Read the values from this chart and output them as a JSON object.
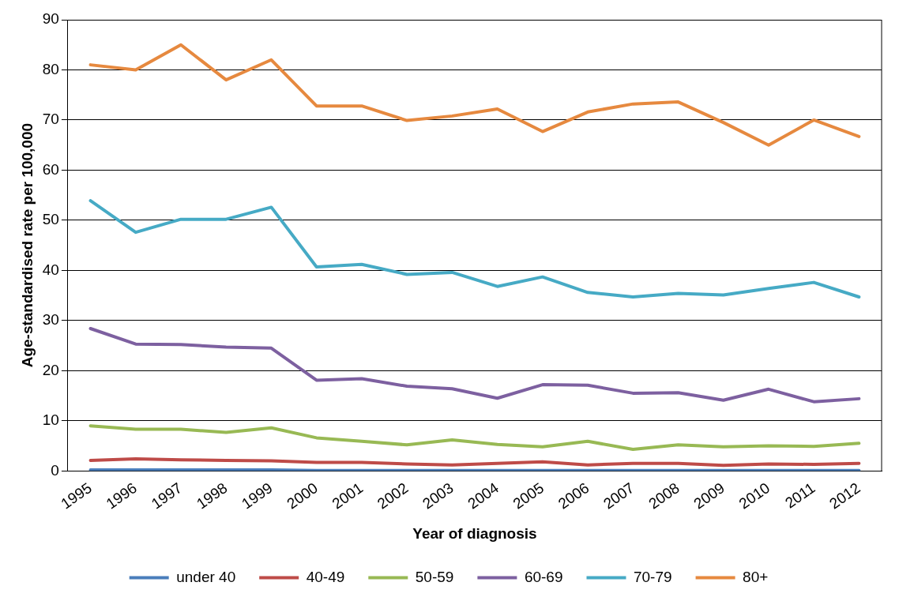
{
  "chart_data": {
    "type": "line",
    "xlabel": "Year of diagnosis",
    "ylabel": "Age-standardised rate per 100,000",
    "categories": [
      "1995",
      "1996",
      "1997",
      "1998",
      "1999",
      "2000",
      "2001",
      "2002",
      "2003",
      "2004",
      "2005",
      "2006",
      "2007",
      "2008",
      "2009",
      "2010",
      "2011",
      "2012"
    ],
    "series": [
      {
        "name": "under 40",
        "color": "#4a7ebb",
        "values": [
          0.2,
          0.2,
          0.2,
          0.2,
          0.2,
          0.1,
          0.1,
          0.1,
          0.1,
          0.1,
          0.1,
          0.1,
          0.1,
          0.1,
          0.1,
          0.1,
          0.1,
          0.1
        ]
      },
      {
        "name": "40-49",
        "color": "#be4b48",
        "values": [
          2.1,
          2.4,
          2.2,
          2.1,
          2.0,
          1.7,
          1.7,
          1.4,
          1.2,
          1.5,
          1.8,
          1.2,
          1.5,
          1.5,
          1.1,
          1.4,
          1.3,
          1.5
        ]
      },
      {
        "name": "50-59",
        "color": "#98b954",
        "values": [
          9.0,
          8.3,
          8.3,
          7.7,
          8.6,
          6.6,
          5.9,
          5.2,
          6.2,
          5.3,
          4.8,
          5.9,
          4.3,
          5.2,
          4.8,
          5.0,
          4.9,
          5.5
        ]
      },
      {
        "name": "60-69",
        "color": "#7d60a0",
        "values": [
          28.4,
          25.3,
          25.2,
          24.7,
          24.5,
          18.1,
          18.4,
          16.9,
          16.4,
          14.5,
          17.2,
          17.1,
          15.5,
          15.6,
          14.1,
          16.3,
          13.8,
          14.4
        ]
      },
      {
        "name": "70-79",
        "color": "#46aac5",
        "values": [
          53.9,
          47.6,
          50.2,
          50.2,
          52.6,
          40.7,
          41.2,
          39.2,
          39.6,
          36.8,
          38.7,
          35.6,
          34.7,
          35.4,
          35.1,
          36.4,
          37.6,
          34.7
        ]
      },
      {
        "name": "80+",
        "color": "#e6893f",
        "values": [
          81,
          80,
          85,
          78,
          82,
          72.8,
          72.8,
          69.9,
          70.8,
          72.2,
          67.7,
          71.6,
          73.2,
          73.6,
          69.5,
          65,
          70,
          66.7
        ]
      }
    ],
    "ylim": [
      0,
      90
    ],
    "yticks": [
      0,
      10,
      20,
      30,
      40,
      50,
      60,
      70,
      80,
      90
    ],
    "grid": "y",
    "legend": "bottom",
    "marker": "none",
    "line_style": "solid"
  }
}
